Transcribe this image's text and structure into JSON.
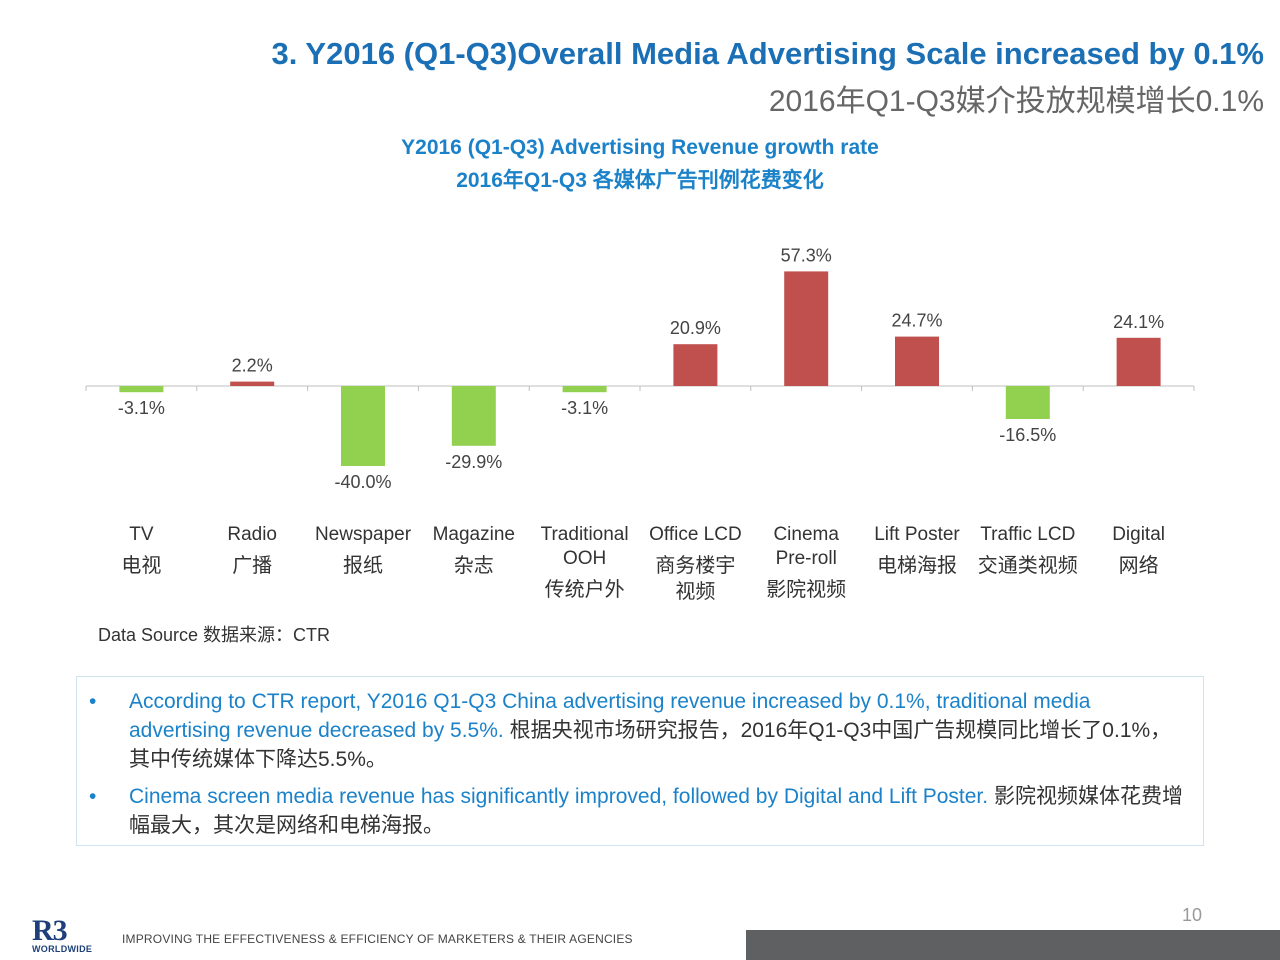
{
  "header": {
    "title_en": "3. Y2016 (Q1-Q3)Overall Media Advertising  Scale increased by 0.1%",
    "title_cn": "2016年Q1-Q3媒介投放规模增长0.1%"
  },
  "colors": {
    "positive": "#c0504d",
    "negative": "#92d050",
    "title": "#1b6fb5",
    "chart_title": "#1b82c9"
  },
  "chart_data": {
    "type": "bar",
    "title": "Y2016 (Q1-Q3) Advertising Revenue growth rate",
    "subtitle": "2016年Q1-Q3 各媒体广告刊例花费变化",
    "categories": [
      {
        "en": "TV",
        "cn": "电视"
      },
      {
        "en": "Radio",
        "cn": "广播"
      },
      {
        "en": "Newspaper",
        "cn": "报纸"
      },
      {
        "en": "Magazine",
        "cn": "杂志"
      },
      {
        "en": "Traditional OOH",
        "cn": "传统户外"
      },
      {
        "en": "Office LCD",
        "cn": "商务楼宇视频"
      },
      {
        "en": "Cinema Pre-roll",
        "cn": "影院视频"
      },
      {
        "en": "Lift Poster",
        "cn": "电梯海报"
      },
      {
        "en": "Traffic LCD",
        "cn": "交通类视频"
      },
      {
        "en": "Digital",
        "cn": "网络"
      }
    ],
    "values": [
      -3.1,
      2.2,
      -40.0,
      -29.9,
      -3.1,
      20.9,
      57.3,
      24.7,
      -16.5,
      24.1
    ],
    "value_labels": [
      "-3.1%",
      "2.2%",
      "-40.0%",
      "-29.9%",
      "-3.1%",
      "20.9%",
      "57.3%",
      "24.7%",
      "-16.5%",
      "24.1%"
    ],
    "unit": "%",
    "grid": false,
    "legend": "none"
  },
  "source": "Data Source 数据来源：CTR",
  "notes": [
    {
      "bullet": "•",
      "en": "According to CTR report, Y2016 Q1-Q3 China advertising revenue  increased by 0.1%, traditional media advertising revenue decreased by 5.5%.",
      "cn": " 根据央视市场研究报告，2016年Q1-Q3中国广告规模同比增长了0.1%，其中传统媒体下降达5.5%。"
    },
    {
      "bullet": "•",
      "en": "Cinema screen media revenue has significantly improved, followed by Digital and Lift Poster.",
      "cn": " 影院视频媒体花费增幅最大，其次是网络和电梯海报。"
    }
  ],
  "footer": {
    "logo_mark": "R3",
    "logo_sub": "WORLDWIDE",
    "tagline": "IMPROVING THE EFFECTIVENESS & EFFICIENCY OF MARKETERS & THEIR AGENCIES",
    "page_number": "10"
  }
}
